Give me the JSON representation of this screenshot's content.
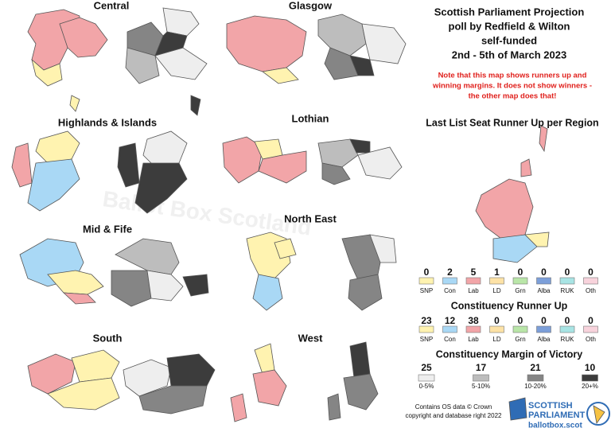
{
  "regions": [
    "Central",
    "Glasgow",
    "Highlands & Islands",
    "Lothian",
    "Mid & Fife",
    "North East",
    "South",
    "West"
  ],
  "title": [
    "Scottish Parliament Projection",
    "poll by Redfield & Wilton",
    "self-funded",
    "2nd - 5th of March 2023"
  ],
  "note": [
    "Note that this map shows runners up and",
    "winning margins. It does not show winners -",
    "the other map does that!"
  ],
  "list_runner_up": {
    "heading": "Last List Seat Runner Up per Region",
    "items": [
      {
        "count": 0,
        "party": "SNP",
        "color": "#fff3b0"
      },
      {
        "count": 2,
        "party": "Con",
        "color": "#a9d8f5"
      },
      {
        "count": 5,
        "party": "Lab",
        "color": "#f2a5a8"
      },
      {
        "count": 1,
        "party": "LD",
        "color": "#fde2a6"
      },
      {
        "count": 0,
        "party": "Grn",
        "color": "#b9e6a8"
      },
      {
        "count": 0,
        "party": "Alba",
        "color": "#7c9fd9"
      },
      {
        "count": 0,
        "party": "RUK",
        "color": "#a8e4e4"
      },
      {
        "count": 0,
        "party": "Oth",
        "color": "#f8d3dc"
      }
    ]
  },
  "constituency_runner_up": {
    "heading": "Constituency Runner Up",
    "items": [
      {
        "count": 23,
        "party": "SNP",
        "color": "#fff3b0"
      },
      {
        "count": 12,
        "party": "Con",
        "color": "#a9d8f5"
      },
      {
        "count": 38,
        "party": "Lab",
        "color": "#f2a5a8"
      },
      {
        "count": 0,
        "party": "LD",
        "color": "#fde2a6"
      },
      {
        "count": 0,
        "party": "Grn",
        "color": "#b9e6a8"
      },
      {
        "count": 0,
        "party": "Alba",
        "color": "#7c9fd9"
      },
      {
        "count": 0,
        "party": "RUK",
        "color": "#a8e4e4"
      },
      {
        "count": 0,
        "party": "Oth",
        "color": "#f8d3dc"
      }
    ]
  },
  "margin": {
    "heading": "Constituency Margin of Victory",
    "items": [
      {
        "count": 25,
        "label": "0-5%",
        "color": "#eeeeee"
      },
      {
        "count": 17,
        "label": "5-10%",
        "color": "#bdbdbd"
      },
      {
        "count": 21,
        "label": "10-20%",
        "color": "#858585"
      },
      {
        "count": 10,
        "label": "20+%",
        "color": "#3c3c3c"
      }
    ]
  },
  "credit": [
    "Contains OS data © Crown",
    "copyright and database right 2022"
  ],
  "logo": {
    "line1": "SCOTTISH",
    "line2": "PARLIAMENT",
    "url": "ballotbox.scot"
  },
  "watermark": "Ballot Box Scotland"
}
